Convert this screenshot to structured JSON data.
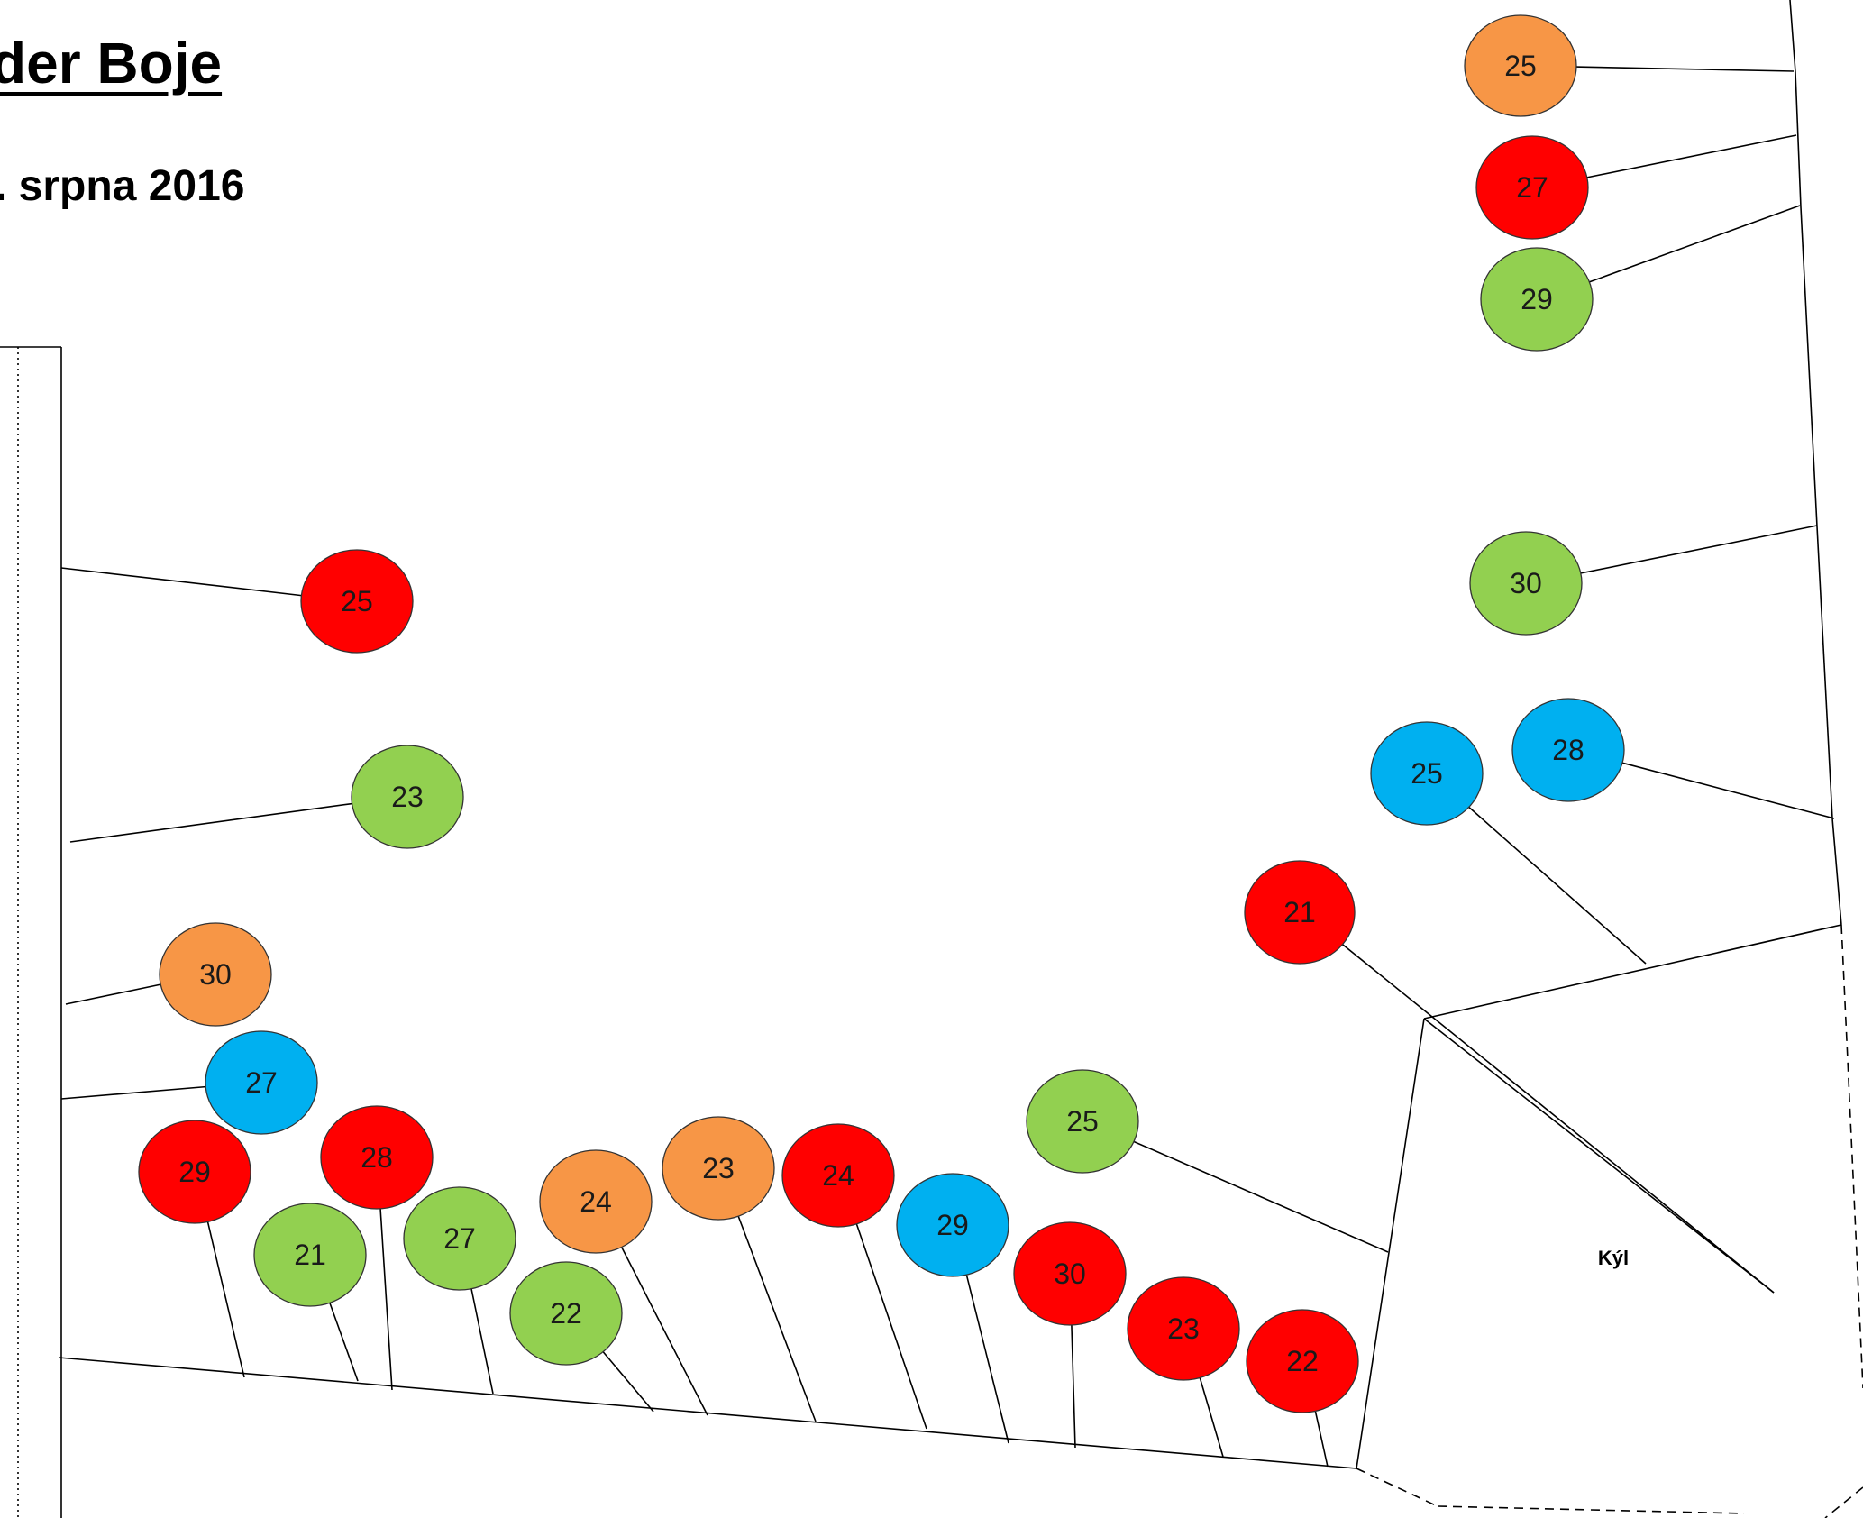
{
  "title": "der Boje",
  "subtitle": ". srpna 2016",
  "keel_label": "Kýl",
  "colors": {
    "red": "#ff0000",
    "green": "#92d050",
    "orange": "#f79646",
    "blue": "#00b0f0",
    "line": "#000000"
  },
  "markers": [
    {
      "number": "25",
      "color": "orange"
    },
    {
      "number": "27",
      "color": "red"
    },
    {
      "number": "29",
      "color": "green"
    },
    {
      "number": "30",
      "color": "green"
    },
    {
      "number": "28",
      "color": "blue"
    },
    {
      "number": "25",
      "color": "blue"
    },
    {
      "number": "21",
      "color": "red"
    },
    {
      "number": "25",
      "color": "red"
    },
    {
      "number": "23",
      "color": "green"
    },
    {
      "number": "30",
      "color": "orange"
    },
    {
      "number": "27",
      "color": "blue"
    },
    {
      "number": "29",
      "color": "red"
    },
    {
      "number": "28",
      "color": "red"
    },
    {
      "number": "21",
      "color": "green"
    },
    {
      "number": "27",
      "color": "green"
    },
    {
      "number": "22",
      "color": "green"
    },
    {
      "number": "24",
      "color": "orange"
    },
    {
      "number": "23",
      "color": "orange"
    },
    {
      "number": "24",
      "color": "red"
    },
    {
      "number": "29",
      "color": "blue"
    },
    {
      "number": "25",
      "color": "green"
    },
    {
      "number": "30",
      "color": "red"
    },
    {
      "number": "23",
      "color": "red"
    },
    {
      "number": "22",
      "color": "red"
    }
  ]
}
